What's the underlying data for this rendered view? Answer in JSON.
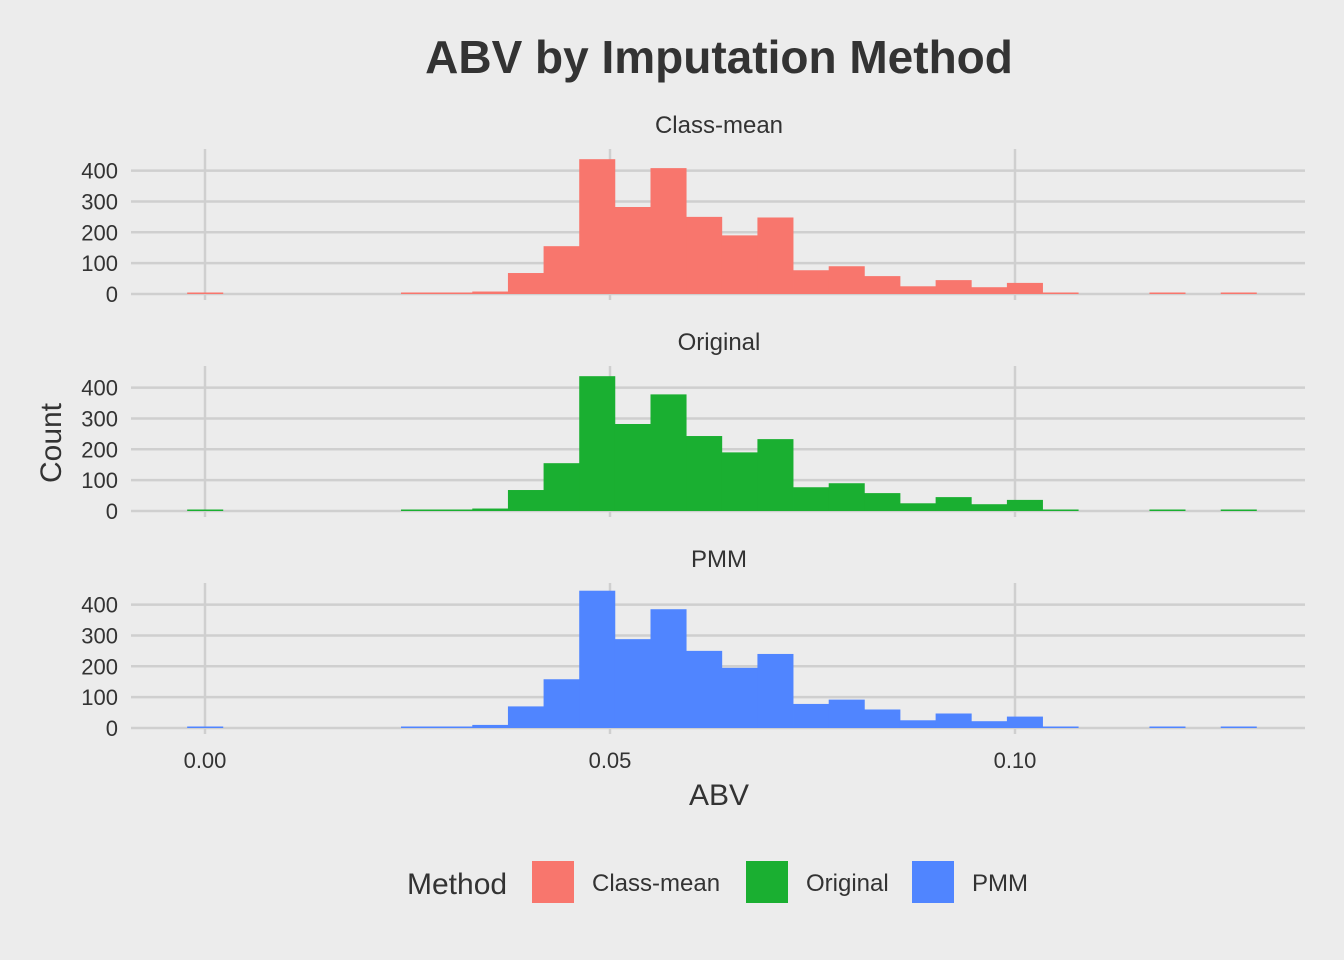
{
  "chart_data": {
    "type": "bar",
    "subtype": "histogram-faceted",
    "title": "ABV by Imputation Method",
    "xlabel": "ABV",
    "ylabel": "Count",
    "xlim": [
      -0.009,
      0.1355
    ],
    "ylim": [
      0,
      470
    ],
    "x_ticks": [
      0.0,
      0.05,
      0.1
    ],
    "x_tick_labels": [
      "0.00",
      "0.05",
      "0.10"
    ],
    "y_ticks": [
      0,
      100,
      200,
      300,
      400
    ],
    "y_tick_labels": [
      "0",
      "100",
      "200",
      "300",
      "400"
    ],
    "bin_width": 0.0044,
    "bin_starts": [
      -0.0022,
      0.0022,
      0.0066,
      0.011,
      0.0154,
      0.0198,
      0.0242,
      0.0286,
      0.033,
      0.0374,
      0.0418,
      0.0462,
      0.0506,
      0.055,
      0.0594,
      0.0638,
      0.0682,
      0.0726,
      0.077,
      0.0814,
      0.0858,
      0.0902,
      0.0946,
      0.099,
      0.1034,
      0.1078,
      0.1122,
      0.1166,
      0.121,
      0.1254
    ],
    "legend": {
      "title": "Method",
      "position": "bottom"
    },
    "grid": true,
    "series": [
      {
        "name": "Class-mean",
        "color": "#f8766d",
        "values": [
          2,
          0,
          0,
          0,
          0,
          0,
          2,
          3,
          8,
          68,
          155,
          437,
          282,
          408,
          250,
          190,
          248,
          77,
          90,
          58,
          25,
          45,
          22,
          36,
          2,
          0,
          0,
          1,
          0,
          2
        ]
      },
      {
        "name": "Original",
        "color": "#1aaf31",
        "values": [
          2,
          0,
          0,
          0,
          0,
          0,
          2,
          3,
          8,
          68,
          155,
          437,
          282,
          378,
          243,
          190,
          233,
          77,
          90,
          58,
          25,
          45,
          22,
          36,
          2,
          0,
          0,
          1,
          0,
          2
        ]
      },
      {
        "name": "PMM",
        "color": "#5085ff",
        "values": [
          2,
          0,
          0,
          0,
          0,
          0,
          2,
          3,
          10,
          70,
          158,
          445,
          288,
          385,
          250,
          195,
          240,
          78,
          92,
          60,
          25,
          47,
          22,
          37,
          3,
          0,
          0,
          1,
          0,
          2
        ]
      }
    ]
  }
}
